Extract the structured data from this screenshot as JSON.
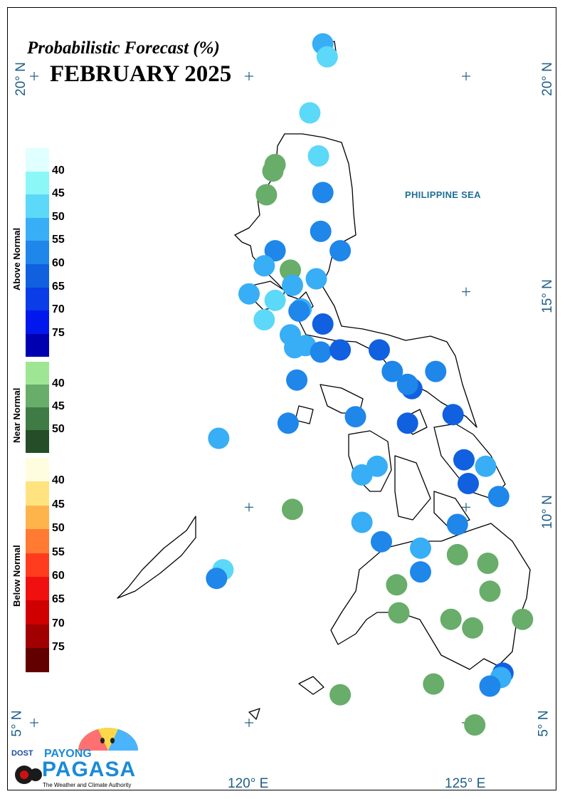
{
  "title": "Probabilistic Forecast (%)",
  "month": "FEBRUARY 2025",
  "sea_label": "PHILIPPINE SEA",
  "axes": {
    "lat_labels": [
      "20° N",
      "15° N",
      "10° N",
      "5° N"
    ],
    "lon_labels": [
      "120° E",
      "125° E"
    ]
  },
  "legend": {
    "above": {
      "title": "Above Normal",
      "ticks": [
        "40",
        "45",
        "50",
        "55",
        "60",
        "65",
        "70",
        "75"
      ],
      "colors": [
        "#e0ffff",
        "#8cf7f7",
        "#5cd8f8",
        "#37aef5",
        "#1f86ea",
        "#1060e0",
        "#0a3ce8",
        "#0018ee",
        "#0000b0"
      ]
    },
    "near": {
      "title": "Near Normal",
      "ticks": [
        "40",
        "45",
        "50"
      ],
      "colors": [
        "#9ee693",
        "#68ad6a",
        "#3f7b45",
        "#244d28"
      ]
    },
    "below": {
      "title": "Below Normal",
      "ticks": [
        "40",
        "45",
        "50",
        "55",
        "60",
        "65",
        "70",
        "75"
      ],
      "colors": [
        "#fffde0",
        "#ffe380",
        "#ffb44b",
        "#ff7a32",
        "#ff3c1e",
        "#f01010",
        "#d00000",
        "#a00000",
        "#620000"
      ]
    }
  },
  "logo": {
    "agency": "DOST",
    "brand_top": "PAYONG",
    "brand_main": "PAGASA",
    "tagline": "The Weather and Climate Authority"
  },
  "stations": [
    {
      "lon": 121.7,
      "lat": 20.75,
      "cat": "above",
      "pct": 50
    },
    {
      "lon": 121.8,
      "lat": 20.45,
      "cat": "above",
      "pct": 45
    },
    {
      "lon": 121.4,
      "lat": 19.15,
      "cat": "above",
      "pct": 45
    },
    {
      "lon": 121.6,
      "lat": 18.15,
      "cat": "above",
      "pct": 45
    },
    {
      "lon": 120.6,
      "lat": 17.95,
      "cat": "near",
      "pct": 40
    },
    {
      "lon": 120.55,
      "lat": 17.8,
      "cat": "near",
      "pct": 40
    },
    {
      "lon": 120.4,
      "lat": 17.25,
      "cat": "near",
      "pct": 40
    },
    {
      "lon": 121.7,
      "lat": 17.3,
      "cat": "above",
      "pct": 55
    },
    {
      "lon": 121.65,
      "lat": 16.4,
      "cat": "above",
      "pct": 55
    },
    {
      "lon": 122.1,
      "lat": 15.95,
      "cat": "above",
      "pct": 55
    },
    {
      "lon": 120.6,
      "lat": 15.95,
      "cat": "above",
      "pct": 55
    },
    {
      "lon": 120.35,
      "lat": 15.6,
      "cat": "above",
      "pct": 50
    },
    {
      "lon": 120.95,
      "lat": 15.5,
      "cat": "near",
      "pct": 40
    },
    {
      "lon": 121.55,
      "lat": 15.3,
      "cat": "above",
      "pct": 50
    },
    {
      "lon": 121.0,
      "lat": 15.15,
      "cat": "above",
      "pct": 50
    },
    {
      "lon": 120.0,
      "lat": 14.95,
      "cat": "above",
      "pct": 50
    },
    {
      "lon": 120.6,
      "lat": 14.8,
      "cat": "above",
      "pct": 45
    },
    {
      "lon": 121.2,
      "lat": 14.6,
      "cat": "above",
      "pct": 50
    },
    {
      "lon": 121.15,
      "lat": 14.55,
      "cat": "above",
      "pct": 55
    },
    {
      "lon": 120.35,
      "lat": 14.35,
      "cat": "above",
      "pct": 45
    },
    {
      "lon": 121.7,
      "lat": 14.25,
      "cat": "above",
      "pct": 60
    },
    {
      "lon": 120.95,
      "lat": 14.0,
      "cat": "above",
      "pct": 50
    },
    {
      "lon": 121.3,
      "lat": 13.75,
      "cat": "above",
      "pct": 50
    },
    {
      "lon": 121.05,
      "lat": 13.7,
      "cat": "above",
      "pct": 50
    },
    {
      "lon": 121.65,
      "lat": 13.6,
      "cat": "above",
      "pct": 55
    },
    {
      "lon": 122.1,
      "lat": 13.65,
      "cat": "above",
      "pct": 60
    },
    {
      "lon": 123.0,
      "lat": 13.65,
      "cat": "above",
      "pct": 60
    },
    {
      "lon": 121.1,
      "lat": 12.95,
      "cat": "above",
      "pct": 55
    },
    {
      "lon": 123.3,
      "lat": 13.15,
      "cat": "above",
      "pct": 55
    },
    {
      "lon": 123.75,
      "lat": 12.75,
      "cat": "above",
      "pct": 60
    },
    {
      "lon": 123.65,
      "lat": 12.85,
      "cat": "above",
      "pct": 55
    },
    {
      "lon": 124.3,
      "lat": 13.15,
      "cat": "above",
      "pct": 55
    },
    {
      "lon": 122.45,
      "lat": 12.1,
      "cat": "above",
      "pct": 55
    },
    {
      "lon": 120.9,
      "lat": 11.95,
      "cat": "above",
      "pct": 55
    },
    {
      "lon": 123.65,
      "lat": 11.95,
      "cat": "above",
      "pct": 60
    },
    {
      "lon": 124.7,
      "lat": 12.15,
      "cat": "above",
      "pct": 60
    },
    {
      "lon": 119.3,
      "lat": 11.6,
      "cat": "above",
      "pct": 50
    },
    {
      "lon": 124.95,
      "lat": 11.1,
      "cat": "above",
      "pct": 60
    },
    {
      "lon": 125.45,
      "lat": 10.95,
      "cat": "above",
      "pct": 50
    },
    {
      "lon": 122.95,
      "lat": 10.95,
      "cat": "above",
      "pct": 50
    },
    {
      "lon": 122.6,
      "lat": 10.75,
      "cat": "above",
      "pct": 50
    },
    {
      "lon": 125.05,
      "lat": 10.55,
      "cat": "above",
      "pct": 60
    },
    {
      "lon": 125.75,
      "lat": 10.25,
      "cat": "above",
      "pct": 55
    },
    {
      "lon": 121.0,
      "lat": 9.95,
      "cat": "near",
      "pct": 40
    },
    {
      "lon": 122.6,
      "lat": 9.65,
      "cat": "above",
      "pct": 50
    },
    {
      "lon": 124.8,
      "lat": 9.6,
      "cat": "above",
      "pct": 55
    },
    {
      "lon": 123.05,
      "lat": 9.2,
      "cat": "above",
      "pct": 55
    },
    {
      "lon": 123.95,
      "lat": 9.05,
      "cat": "above",
      "pct": 50
    },
    {
      "lon": 124.8,
      "lat": 8.9,
      "cat": "near",
      "pct": 40
    },
    {
      "lon": 119.4,
      "lat": 8.55,
      "cat": "above",
      "pct": 45
    },
    {
      "lon": 119.25,
      "lat": 8.35,
      "cat": "above",
      "pct": 55
    },
    {
      "lon": 125.5,
      "lat": 8.7,
      "cat": "near",
      "pct": 40
    },
    {
      "lon": 123.95,
      "lat": 8.5,
      "cat": "above",
      "pct": 55
    },
    {
      "lon": 123.4,
      "lat": 8.2,
      "cat": "near",
      "pct": 40
    },
    {
      "lon": 125.55,
      "lat": 8.05,
      "cat": "near",
      "pct": 40
    },
    {
      "lon": 123.45,
      "lat": 7.55,
      "cat": "near",
      "pct": 40
    },
    {
      "lon": 124.65,
      "lat": 7.4,
      "cat": "near",
      "pct": 40
    },
    {
      "lon": 125.15,
      "lat": 7.2,
      "cat": "near",
      "pct": 40
    },
    {
      "lon": 126.3,
      "lat": 7.4,
      "cat": "near",
      "pct": 40
    },
    {
      "lon": 125.85,
      "lat": 6.15,
      "cat": "above",
      "pct": 60
    },
    {
      "lon": 125.8,
      "lat": 6.05,
      "cat": "above",
      "pct": 50
    },
    {
      "lon": 125.55,
      "lat": 5.85,
      "cat": "above",
      "pct": 55
    },
    {
      "lon": 124.25,
      "lat": 5.9,
      "cat": "near",
      "pct": 40
    },
    {
      "lon": 122.1,
      "lat": 5.65,
      "cat": "near",
      "pct": 40
    },
    {
      "lon": 125.2,
      "lat": 4.95,
      "cat": "near",
      "pct": 40
    }
  ]
}
